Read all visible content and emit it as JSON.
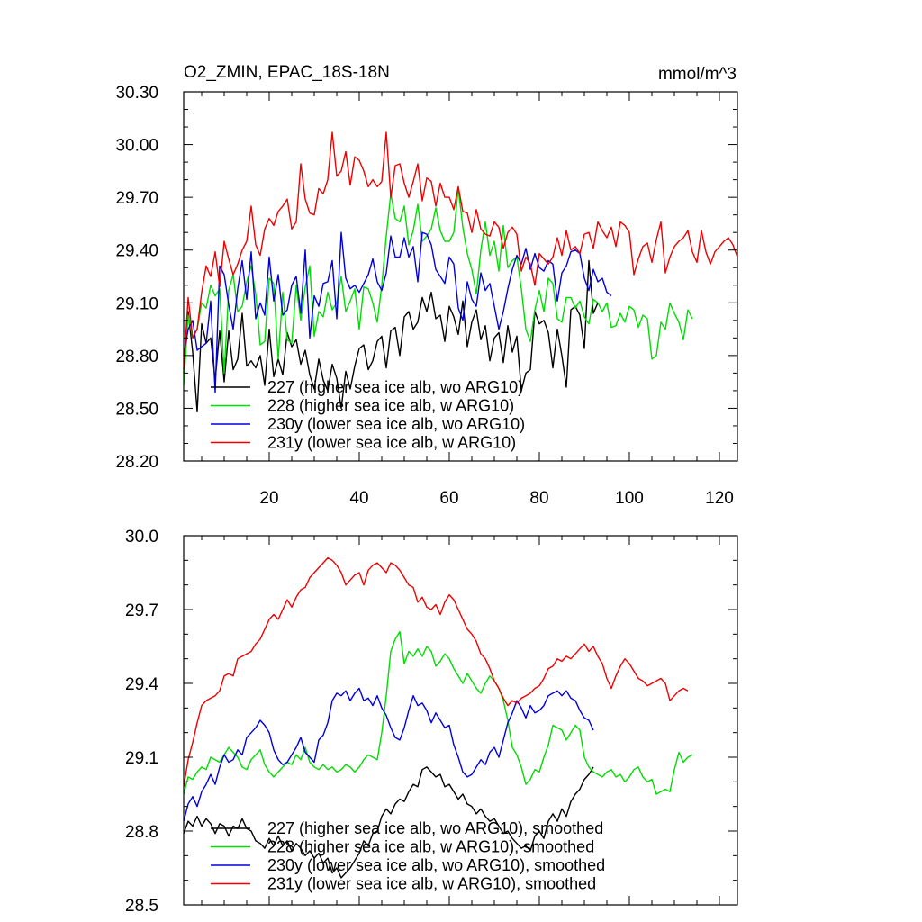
{
  "chart_data": [
    {
      "type": "line",
      "title_left": "O2_ZMIN, EPAC_18S-18N",
      "title_right": "mmol/m^3",
      "xlim": [
        1,
        124
      ],
      "ylim": [
        28.2,
        30.3
      ],
      "yticks": [
        "28.20",
        "28.50",
        "28.80",
        "29.10",
        "29.40",
        "29.70",
        "30.00",
        "30.30"
      ],
      "xticks": [
        "20",
        "40",
        "60",
        "80",
        "100",
        "120"
      ],
      "legend_position": "bottom-left",
      "series": [
        {
          "name": "227 (higher sea ice alb, wo ARG10)",
          "color": "#000000",
          "values": [
            28.7,
            29.05,
            28.82,
            28.48,
            28.98,
            28.87,
            28.9,
            28.66,
            28.94,
            28.65,
            28.94,
            28.72,
            28.78,
            29.04,
            28.74,
            28.77,
            28.73,
            28.8,
            28.63,
            28.95,
            28.68,
            28.78,
            28.69,
            28.93,
            28.85,
            28.89,
            28.75,
            28.83,
            28.69,
            28.61,
            28.78,
            28.66,
            28.6,
            28.75,
            28.67,
            28.5,
            28.71,
            28.61,
            28.74,
            28.84,
            28.86,
            28.72,
            28.77,
            28.88,
            28.91,
            28.73,
            28.94,
            28.96,
            28.8,
            29.02,
            29.05,
            28.95,
            28.99,
            29.13,
            29.05,
            29.16,
            29.01,
            29.03,
            28.88,
            29.08,
            29.02,
            28.92,
            29.11,
            28.85,
            28.99,
            29.06,
            28.89,
            28.97,
            28.77,
            28.9,
            28.93,
            28.76,
            28.97,
            28.82,
            28.91,
            28.6,
            28.7,
            28.72,
            29.05,
            28.98,
            29.0,
            28.93,
            28.73,
            28.95,
            28.8,
            28.62,
            29.06,
            29.08,
            29.03,
            28.84,
            29.34,
            29.04,
            29.1
          ]
        },
        {
          "name": "228 (higher sea ice alb, w ARG10)",
          "color": "#00dd00",
          "values": [
            28.63,
            29.03,
            28.9,
            28.95,
            29.1,
            29.07,
            29.2,
            29.14,
            29.18,
            28.7,
            29.17,
            29.26,
            29.05,
            29.08,
            29.22,
            29.31,
            29.15,
            28.86,
            28.88,
            29.24,
            29.21,
            28.78,
            29.16,
            28.89,
            28.87,
            29.2,
            29.0,
            29.19,
            29.31,
            28.91,
            29.05,
            29.02,
            29.16,
            29.06,
            29.1,
            29.25,
            29.05,
            29.11,
            29.18,
            28.95,
            29.19,
            29.18,
            29.1,
            28.99,
            29.2,
            29.48,
            29.72,
            29.58,
            29.56,
            29.65,
            29.43,
            29.51,
            29.66,
            29.45,
            29.48,
            29.52,
            29.64,
            29.51,
            29.45,
            29.45,
            29.5,
            29.75,
            29.53,
            29.38,
            29.29,
            29.15,
            29.4,
            29.56,
            29.37,
            29.45,
            29.28,
            29.54,
            29.3,
            29.34,
            29.36,
            29.18,
            28.95,
            28.88,
            29.06,
            29.17,
            29.05,
            29.24,
            29.21,
            29.01,
            28.99,
            29.13,
            29.13,
            29.07,
            29.11,
            29.02,
            28.98,
            29.12,
            29.1,
            29.05,
            29.1,
            28.96,
            28.97,
            29.04,
            28.99,
            29.08,
            29.06,
            28.96,
            29.03,
            29.01,
            28.78,
            28.8,
            28.99,
            28.95,
            29.1,
            29.04,
            28.99,
            28.89,
            29.06,
            29.01
          ]
        },
        {
          "name": "230y (lower sea ice alb, wo ARG10)",
          "color": "#0000dd",
          "values": [
            28.8,
            28.95,
            29.0,
            28.83,
            28.85,
            28.87,
            29.11,
            28.59,
            29.31,
            29.26,
            29.09,
            28.95,
            29.18,
            29.34,
            29.12,
            29.39,
            29.01,
            29.1,
            29.03,
            29.36,
            29.11,
            29.26,
            29.03,
            29.06,
            29.2,
            29.25,
            29.04,
            29.4,
            28.9,
            29.14,
            29.08,
            29.21,
            29.22,
            29.34,
            29.01,
            29.5,
            29.24,
            29.18,
            29.2,
            29.16,
            29.21,
            29.26,
            29.35,
            29.22,
            29.17,
            29.27,
            29.48,
            29.36,
            29.36,
            29.47,
            29.36,
            29.42,
            29.22,
            29.5,
            29.49,
            29.43,
            29.29,
            29.25,
            29.21,
            29.36,
            29.32,
            29.07,
            29.0,
            29.22,
            29.12,
            29.08,
            29.27,
            29.17,
            29.21,
            29.08,
            28.95,
            29.05,
            29.18,
            29.29,
            29.37,
            29.32,
            29.41,
            29.29,
            29.38,
            29.3,
            29.28,
            29.34,
            29.32,
            29.11,
            29.27,
            29.31,
            29.39,
            29.4,
            29.38,
            29.24,
            29.17,
            29.29,
            29.22,
            29.24,
            29.16,
            29.14
          ]
        },
        {
          "name": "231y (lower sea ice alb, w ARG10)",
          "color": "#ee0000",
          "values": [
            28.72,
            29.13,
            28.9,
            28.95,
            29.16,
            29.31,
            29.25,
            29.39,
            29.19,
            29.45,
            29.35,
            29.26,
            29.32,
            29.4,
            29.45,
            29.65,
            29.43,
            29.37,
            29.52,
            29.58,
            29.54,
            29.62,
            29.65,
            29.69,
            29.52,
            29.56,
            29.89,
            29.69,
            29.61,
            29.6,
            29.75,
            29.72,
            29.8,
            30.07,
            29.82,
            29.85,
            29.96,
            29.77,
            29.93,
            29.91,
            29.85,
            29.76,
            29.8,
            29.76,
            29.79,
            30.07,
            29.7,
            29.88,
            29.89,
            29.78,
            29.7,
            29.79,
            29.89,
            29.68,
            29.81,
            29.79,
            29.65,
            29.78,
            29.7,
            29.7,
            29.63,
            29.76,
            29.62,
            29.61,
            29.5,
            29.63,
            29.52,
            29.49,
            29.48,
            29.56,
            29.53,
            29.41,
            29.5,
            29.53,
            29.49,
            29.28,
            29.36,
            29.32,
            29.2,
            29.38,
            29.35,
            29.32,
            29.36,
            29.47,
            29.37,
            29.51,
            29.4,
            29.42,
            29.38,
            29.49,
            29.5,
            29.41,
            29.56,
            29.51,
            29.47,
            29.53,
            29.42,
            29.56,
            29.54,
            29.5,
            29.26,
            29.35,
            29.42,
            29.44,
            29.33,
            29.46,
            29.56,
            29.27,
            29.36,
            29.42,
            29.45,
            29.47,
            29.51,
            29.39,
            29.33,
            29.51,
            29.39,
            29.32,
            29.39,
            29.42,
            29.45,
            29.47,
            29.43,
            29.36
          ]
        }
      ]
    },
    {
      "type": "line",
      "xlim": [
        1,
        124
      ],
      "ylim": [
        28.5,
        30.0
      ],
      "yticks": [
        "28.5",
        "28.8",
        "29.1",
        "29.4",
        "29.7",
        "30.0"
      ],
      "legend_position": "bottom-left",
      "series": [
        {
          "name": "227 (higher sea ice alb, wo ARG10), smoothed",
          "color": "#000000",
          "values": [
            28.79,
            28.84,
            28.82,
            28.86,
            28.82,
            28.85,
            28.83,
            28.79,
            28.83,
            28.82,
            28.78,
            28.82,
            28.81,
            28.85,
            28.81,
            28.8,
            28.76,
            28.75,
            28.73,
            28.77,
            28.74,
            28.78,
            28.74,
            28.76,
            28.72,
            28.75,
            28.73,
            28.7,
            28.72,
            28.69,
            28.71,
            28.67,
            28.69,
            28.63,
            28.65,
            28.61,
            28.63,
            28.65,
            28.68,
            28.71,
            28.76,
            28.74,
            28.79,
            28.8,
            28.86,
            28.89,
            28.87,
            28.91,
            28.93,
            28.92,
            28.96,
            28.99,
            28.98,
            29.05,
            29.06,
            29.04,
            29.02,
            29.03,
            28.98,
            28.99,
            28.96,
            28.93,
            28.95,
            28.91,
            28.9,
            28.87,
            28.89,
            28.86,
            28.84,
            28.85,
            28.82,
            28.79,
            28.8,
            28.77,
            28.75,
            28.73,
            28.74,
            28.72,
            28.78,
            28.8,
            28.77,
            28.84,
            28.87,
            28.84,
            28.89,
            28.86,
            28.92,
            28.95,
            28.97,
            29.01,
            29.03,
            29.06
          ]
        },
        {
          "name": "228 (higher sea ice alb, w ARG10), smoothed",
          "color": "#00dd00",
          "values": [
            28.95,
            29.02,
            29.01,
            29.04,
            29.06,
            29.05,
            29.1,
            29.09,
            29.08,
            29.11,
            29.14,
            29.12,
            29.1,
            29.06,
            29.05,
            29.09,
            29.11,
            29.13,
            29.07,
            29.04,
            29.02,
            29.04,
            29.06,
            29.08,
            29.07,
            29.11,
            29.09,
            29.14,
            29.08,
            29.06,
            29.05,
            29.07,
            29.05,
            29.06,
            29.04,
            29.05,
            29.07,
            29.06,
            29.04,
            29.06,
            29.09,
            29.11,
            29.1,
            29.09,
            29.2,
            29.35,
            29.53,
            29.58,
            29.61,
            29.48,
            29.53,
            29.51,
            29.54,
            29.51,
            29.55,
            29.53,
            29.47,
            29.49,
            29.52,
            29.5,
            29.46,
            29.43,
            29.4,
            29.44,
            29.41,
            29.38,
            29.36,
            29.4,
            29.43,
            29.41,
            29.38,
            29.33,
            29.25,
            29.14,
            29.11,
            29.06,
            28.99,
            29.01,
            29.05,
            29.04,
            29.1,
            29.15,
            29.23,
            29.22,
            29.21,
            29.17,
            29.2,
            29.23,
            29.21,
            29.1,
            29.06,
            29.04,
            29.03,
            29.02,
            29.04,
            29.05,
            29.02,
            29.03,
            29.0,
            29.02,
            29.05,
            29.06,
            29.02,
            29.0,
            29.01,
            28.95,
            28.96,
            28.97,
            28.96,
            29.05,
            29.12,
            29.08,
            29.1,
            29.11
          ]
        },
        {
          "name": "230y (lower sea ice alb, wo ARG10), smoothed",
          "color": "#0000dd",
          "values": [
            28.84,
            28.91,
            28.94,
            28.9,
            28.96,
            28.99,
            29.03,
            28.99,
            29.06,
            29.11,
            29.08,
            29.09,
            29.13,
            29.11,
            29.18,
            29.2,
            29.22,
            29.25,
            29.23,
            29.2,
            29.13,
            29.09,
            29.07,
            29.08,
            29.11,
            29.14,
            29.18,
            29.12,
            29.1,
            29.08,
            29.17,
            29.19,
            29.24,
            29.33,
            29.36,
            29.35,
            29.37,
            29.33,
            29.36,
            29.38,
            29.33,
            29.34,
            29.31,
            29.35,
            29.3,
            29.27,
            29.22,
            29.18,
            29.17,
            29.22,
            29.29,
            29.35,
            29.31,
            29.32,
            29.29,
            29.24,
            29.28,
            29.25,
            29.22,
            29.23,
            29.15,
            29.1,
            29.04,
            29.02,
            29.03,
            29.06,
            29.09,
            29.07,
            29.12,
            29.14,
            29.1,
            29.17,
            29.24,
            29.28,
            29.33,
            29.3,
            29.26,
            29.31,
            29.28,
            29.29,
            29.31,
            29.35,
            29.36,
            29.37,
            29.35,
            29.37,
            29.34,
            29.33,
            29.29,
            29.26,
            29.25,
            29.21
          ]
        },
        {
          "name": "231y (lower sea ice alb, w ARG10), smoothed",
          "color": "#ee0000",
          "values": [
            28.98,
            29.09,
            29.16,
            29.24,
            29.31,
            29.33,
            29.34,
            29.35,
            29.37,
            29.43,
            29.44,
            29.43,
            29.5,
            29.51,
            29.52,
            29.53,
            29.56,
            29.58,
            29.62,
            29.66,
            29.68,
            29.66,
            29.7,
            29.74,
            29.71,
            29.75,
            29.78,
            29.79,
            29.83,
            29.85,
            29.87,
            29.89,
            29.91,
            29.9,
            29.88,
            29.85,
            29.8,
            29.82,
            29.84,
            29.85,
            29.8,
            29.86,
            29.88,
            29.89,
            29.87,
            29.85,
            29.89,
            29.88,
            29.86,
            29.83,
            29.8,
            29.79,
            29.73,
            29.75,
            29.71,
            29.7,
            29.72,
            29.68,
            29.73,
            29.76,
            29.74,
            29.7,
            29.66,
            29.62,
            29.6,
            29.57,
            29.52,
            29.5,
            29.46,
            29.41,
            29.38,
            29.34,
            29.31,
            29.33,
            29.32,
            29.34,
            29.35,
            29.36,
            29.38,
            29.39,
            29.42,
            29.46,
            29.47,
            29.5,
            29.49,
            29.51,
            29.5,
            29.52,
            29.54,
            29.56,
            29.53,
            29.55,
            29.51,
            29.48,
            29.42,
            29.38,
            29.43,
            29.47,
            29.5,
            29.48,
            29.45,
            29.42,
            29.41,
            29.39,
            29.4,
            29.41,
            29.42,
            29.4,
            29.33,
            29.35,
            29.37,
            29.38,
            29.37
          ]
        }
      ]
    }
  ]
}
